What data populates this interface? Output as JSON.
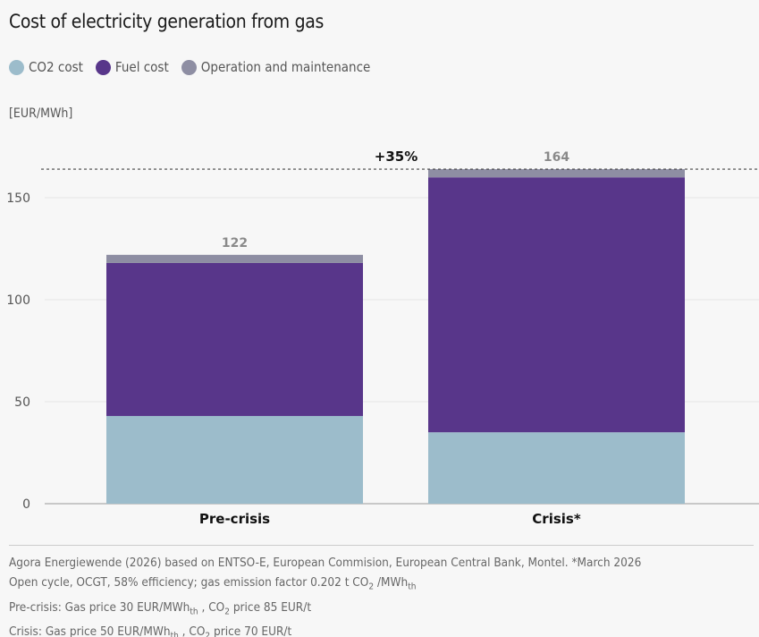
{
  "chart_data": {
    "type": "bar",
    "stacked": true,
    "title": "Cost of electricity generation from gas",
    "ylabel": "[EUR/MWh]",
    "ylim": [
      0,
      170
    ],
    "yticks": [
      0,
      50,
      100,
      150
    ],
    "categories": [
      "Pre-crisis",
      "Crisis*"
    ],
    "series": [
      {
        "name": "CO2 cost",
        "color": "#9cbccb",
        "values": [
          43,
          35
        ]
      },
      {
        "name": "Fuel cost",
        "color": "#58368a",
        "values": [
          75,
          125
        ]
      },
      {
        "name": "Operation and maintenance",
        "color": "#8e8ea3",
        "values": [
          4,
          4
        ]
      }
    ],
    "totals": [
      "122",
      "164"
    ],
    "reference_line": {
      "value": 164,
      "label": "+35%"
    },
    "grid": true,
    "legend_position": "top-left"
  },
  "footer": {
    "line1": "Agora Energiewende (2026) based on ENTSO-E, European Commision, European Central Bank, Montel. *March 2026",
    "line2a": "Open cycle, OCGT, 58% efficiency; gas emission factor 0.202 t CO",
    "line2b": " /MWh",
    "line3a": "Pre-crisis: Gas price 30 EUR/MWh",
    "line3b": " , CO",
    "line3c": " price 85 EUR/t",
    "line4a": "Crisis: Gas price 50 EUR/MWh",
    "line4b": " , CO",
    "line4c": " price 70 EUR/t",
    "sub_2": "2",
    "sub_th": "th"
  }
}
